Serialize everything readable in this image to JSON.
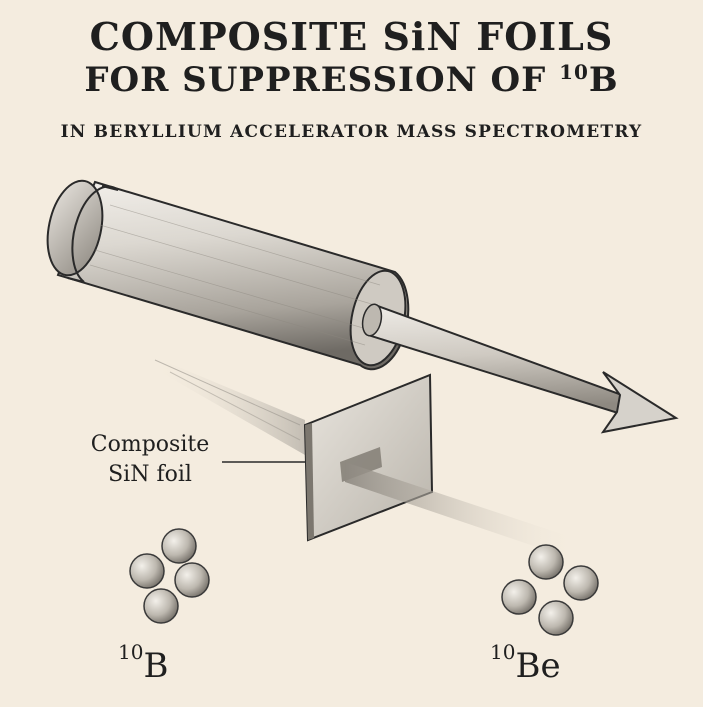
{
  "title": {
    "line1": "COMPOSITE SiN FOILS",
    "line2": "FOR SUPPRESSION OF ",
    "line2_superscript": "10",
    "line2_element": "B",
    "subtitle": "IN BERYLLIUM ACCELERATOR MASS SPECTROMETRY"
  },
  "labels": {
    "foil_line1": "Composite",
    "foil_line2": "SiN foil"
  },
  "isotopes": {
    "left": {
      "mass": "10",
      "element": "B"
    },
    "right": {
      "mass": "10",
      "element": "Be"
    }
  },
  "colors": {
    "background": "#f4ecdf",
    "ink": "#1f1f1f",
    "metal_light": "#e6e2dc",
    "metal_dark": "#6e6a64"
  }
}
